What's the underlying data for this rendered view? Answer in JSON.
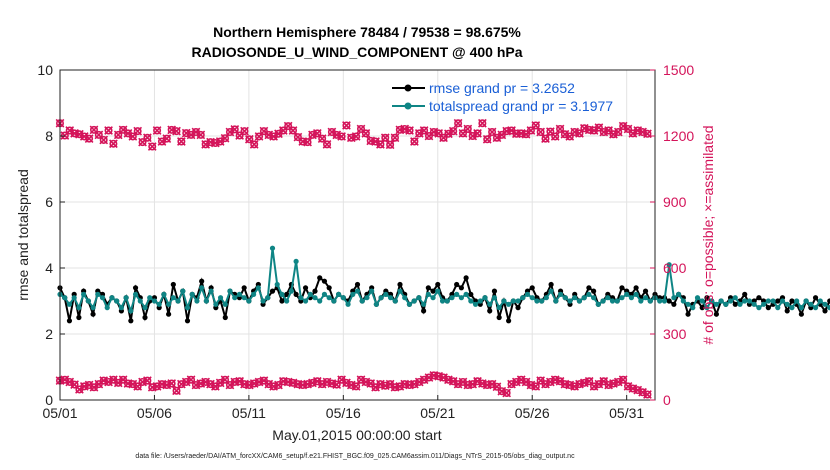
{
  "chart_data": {
    "type": "line",
    "title_line1": "Northern Hemisphere 78484 / 79538 = 98.675%",
    "title_line2": "RADIOSONDE_U_WIND_COMPONENT @ 400 hPa",
    "xlabel": "May.01,2015 00:00:00 start",
    "ylabel_left": "rmse and totalspread",
    "ylabel_right": "# of obs: o=possible; ×=assimilated",
    "x_ticks": [
      "05/01",
      "05/06",
      "05/11",
      "05/16",
      "05/21",
      "05/26",
      "05/31"
    ],
    "x_tick_days": [
      0,
      5,
      10,
      15,
      20,
      25,
      30
    ],
    "xlim": [
      0,
      31.5
    ],
    "ylim_left": [
      0,
      10
    ],
    "yticks_left": [
      "0",
      "2",
      "4",
      "6",
      "8",
      "10"
    ],
    "yticks_left_values": [
      0,
      2,
      4,
      6,
      8,
      10
    ],
    "ylim_right": [
      0,
      1500
    ],
    "yticks_right": [
      "0",
      "300",
      "600",
      "900",
      "1200",
      "1500"
    ],
    "yticks_right_values": [
      0,
      300,
      600,
      900,
      1200,
      1500
    ],
    "x_step_days": 0.25,
    "legend": {
      "position": "top-right",
      "rmse_label": "rmse grand pr = 3.2652",
      "spread_label": "totalspread grand pr = 3.1977"
    },
    "colors": {
      "rmse": "#000000",
      "spread": "#0f8585",
      "obs": "#d4145a",
      "axis": "#222222",
      "grid": "#e3e3e3"
    },
    "series": [
      {
        "name": "rmse",
        "values": [
          3.4,
          3.1,
          2.4,
          3.2,
          2.5,
          3.3,
          3.0,
          2.6,
          3.3,
          3.2,
          2.9,
          3.1,
          3.0,
          2.7,
          3.1,
          2.4,
          3.4,
          3.1,
          2.5,
          3.0,
          3.1,
          2.8,
          3.2,
          2.6,
          3.5,
          3.0,
          3.3,
          2.4,
          3.2,
          3.1,
          3.6,
          3.0,
          3.4,
          2.8,
          3.0,
          2.5,
          3.3,
          3.2,
          3.1,
          3.4,
          3.0,
          3.3,
          3.5,
          2.9,
          3.1,
          3.3,
          3.4,
          3.0,
          3.2,
          3.5,
          3.2,
          3.0,
          3.4,
          3.1,
          3.3,
          3.7,
          3.6,
          3.4,
          3.0,
          3.2,
          3.1,
          3.0,
          3.3,
          3.5,
          3.0,
          3.2,
          3.4,
          2.9,
          3.1,
          3.3,
          3.2,
          3.0,
          3.5,
          3.2,
          2.9,
          3.0,
          3.1,
          2.7,
          3.4,
          3.3,
          3.5,
          3.1,
          3.0,
          3.2,
          3.5,
          3.4,
          3.7,
          3.2,
          3.0,
          2.9,
          3.1,
          2.7,
          3.3,
          2.5,
          3.0,
          2.4,
          3.0,
          2.8,
          3.1,
          3.3,
          3.4,
          3.1,
          3.0,
          3.2,
          3.5,
          3.0,
          3.3,
          3.1,
          2.9,
          3.2,
          3.0,
          3.1,
          3.4,
          3.3,
          2.9,
          3.0,
          3.2,
          3.1,
          3.0,
          3.4,
          3.3,
          3.2,
          3.4,
          3.1,
          3.3,
          3.0,
          3.2,
          3.1,
          3.1,
          3.0,
          2.9,
          3.2,
          3.1,
          2.6,
          2.9,
          3.0,
          2.8,
          3.1,
          3.0,
          2.6,
          3.0,
          2.9,
          3.1,
          2.9,
          3.0,
          3.2,
          2.9,
          3.0,
          3.1,
          3.0,
          2.8,
          2.9,
          3.0,
          3.1,
          2.7,
          3.0,
          2.9,
          2.6,
          3.0,
          2.8,
          3.1,
          2.9,
          2.7,
          3.0,
          2.8,
          2.6,
          3.0,
          2.9,
          3.1,
          2.8,
          2.3,
          3.0,
          2.9,
          3.1,
          2.7,
          3.0,
          2.6,
          3.1,
          2.9,
          3.0,
          3.2,
          3.0,
          2.3,
          3.1,
          3.0,
          3.3,
          3.7
        ]
      },
      {
        "name": "totalspread",
        "values": [
          3.2,
          3.1,
          2.9,
          3.1,
          2.8,
          3.2,
          3.0,
          2.8,
          3.2,
          3.1,
          2.8,
          3.1,
          3.0,
          2.8,
          3.1,
          2.7,
          3.2,
          3.0,
          2.8,
          3.1,
          3.0,
          2.9,
          3.2,
          2.9,
          3.1,
          3.0,
          3.3,
          2.8,
          3.2,
          3.0,
          3.4,
          3.0,
          3.3,
          2.9,
          3.1,
          2.9,
          3.3,
          3.1,
          3.2,
          3.1,
          3.0,
          3.2,
          3.4,
          3.0,
          3.1,
          4.6,
          3.5,
          3.2,
          3.0,
          3.3,
          4.2,
          3.1,
          3.0,
          3.2,
          3.1,
          3.0,
          3.2,
          3.1,
          3.0,
          3.2,
          3.1,
          2.9,
          3.2,
          3.3,
          3.0,
          3.1,
          3.3,
          2.9,
          3.1,
          3.2,
          3.1,
          3.0,
          3.3,
          3.1,
          2.9,
          3.0,
          3.1,
          2.9,
          3.2,
          3.1,
          3.3,
          3.0,
          3.0,
          3.1,
          3.2,
          3.1,
          3.2,
          3.0,
          2.9,
          3.0,
          3.1,
          2.9,
          3.1,
          2.8,
          3.0,
          2.9,
          3.0,
          3.0,
          3.1,
          3.2,
          3.1,
          3.0,
          3.0,
          3.1,
          3.3,
          3.0,
          3.2,
          3.1,
          3.0,
          3.1,
          3.0,
          3.1,
          3.2,
          3.1,
          2.9,
          3.0,
          3.1,
          3.0,
          3.0,
          3.1,
          3.2,
          3.1,
          3.2,
          3.0,
          3.1,
          3.0,
          3.1,
          3.0,
          3.0,
          4.1,
          3.1,
          3.2,
          3.0,
          2.9,
          2.8,
          3.1,
          3.0,
          2.8,
          3.0,
          2.9,
          3.0,
          2.9,
          3.0,
          3.1,
          2.9,
          3.0,
          3.0,
          2.9,
          2.8,
          2.9,
          3.0,
          3.0,
          2.8,
          3.0,
          2.9,
          2.8,
          3.0,
          2.8,
          3.0,
          2.9,
          2.8,
          3.0,
          2.9,
          2.8,
          3.0,
          2.9,
          3.0,
          2.8,
          2.7,
          2.9,
          2.9,
          3.0,
          2.8,
          2.9,
          2.8,
          3.0,
          2.9,
          3.0,
          3.1,
          3.0,
          2.8,
          3.0,
          3.0,
          3.0,
          2.9
        ]
      },
      {
        "name": "obs_possible",
        "values": [
          1258,
          1202,
          1225,
          1212,
          1208,
          1198,
          1188,
          1228,
          1205,
          1182,
          1225,
          1165,
          1205,
          1228,
          1212,
          1198,
          1222,
          1172,
          1192,
          1152,
          1225,
          1175,
          1188,
          1228,
          1222,
          1175,
          1213,
          1205,
          1218,
          1205,
          1162,
          1172,
          1168,
          1175,
          1190,
          1218,
          1230,
          1202,
          1222,
          1185,
          1162,
          1198,
          1222,
          1205,
          1198,
          1210,
          1225,
          1245,
          1225,
          1195,
          1175,
          1172,
          1205,
          1212,
          1188,
          1162,
          1218,
          1205,
          1198,
          1248,
          1192,
          1198,
          1232,
          1212,
          1178,
          1175,
          1162,
          1192,
          1160,
          1192,
          1228,
          1232,
          1225,
          1175,
          1212,
          1225,
          1200,
          1218,
          1212,
          1192,
          1210,
          1222,
          1258,
          1212,
          1232,
          1200,
          1212,
          1258,
          1185,
          1218,
          1192,
          1205,
          1222,
          1225,
          1210,
          1212,
          1208,
          1225,
          1248,
          1218,
          1188,
          1220,
          1198,
          1232,
          1208,
          1198,
          1218,
          1212,
          1235,
          1228,
          1225,
          1238,
          1218,
          1225,
          1208,
          1218,
          1245,
          1232,
          1212,
          1225,
          1218,
          1210
        ]
      },
      {
        "name": "obs_assimilated",
        "values": [
          88,
          92,
          82,
          70,
          48,
          62,
          68,
          58,
          72,
          88,
          82,
          92,
          78,
          92,
          75,
          72,
          62,
          82,
          88,
          58,
          62,
          72,
          68,
          75,
          42,
          72,
          82,
          92,
          68,
          75,
          82,
          72,
          62,
          78,
          92,
          68,
          82,
          85,
          72,
          68,
          75,
          82,
          88,
          72,
          62,
          68,
          85,
          82,
          78,
          72,
          68,
          72,
          78,
          85,
          72,
          82,
          75,
          70,
          92,
          78,
          68,
          62,
          92,
          82,
          75,
          58,
          72,
          65,
          72,
          58,
          62,
          72,
          68,
          72,
          82,
          92,
          102,
          112,
          108,
          102,
          92,
          85,
          72,
          82,
          68,
          72,
          85,
          75,
          68,
          72,
          60,
          40,
          32,
          72,
          82,
          92,
          82,
          68,
          62,
          88,
          72,
          82,
          92,
          85,
          72,
          68,
          62,
          72,
          78,
          85,
          62,
          72,
          85,
          68,
          75,
          82,
          92,
          62,
          52,
          45,
          35,
          25
        ]
      }
    ]
  },
  "footer": "data file: /Users/raeder/DAI/ATM_forcXX/CAM6_setup/f.e21.FHIST_BGC.f09_025.CAM6assim.011/Diags_NTrS_2015-05/obs_diag_output.nc"
}
